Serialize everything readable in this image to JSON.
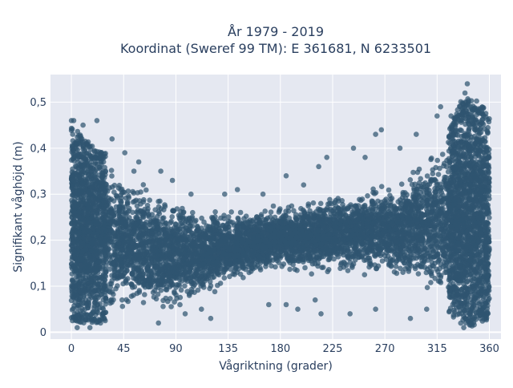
{
  "chart_data": {
    "type": "scatter",
    "title_line1": "År 1979 - 2019",
    "title_line2": "Koordinat (Sweref 99 TM): E 361681, N 6233501",
    "xlabel": "Vågriktning (grader)",
    "ylabel": "Signifikant våghöjd (m)",
    "xlim": [
      -18,
      370
    ],
    "ylim": [
      -0.015,
      0.56
    ],
    "x_ticks": [
      0,
      45,
      90,
      135,
      180,
      225,
      270,
      315,
      360
    ],
    "x_tick_labels": [
      "0",
      "45",
      "90",
      "135",
      "180",
      "225",
      "270",
      "315",
      "360"
    ],
    "y_ticks": [
      0,
      0.1,
      0.2,
      0.3,
      0.4,
      0.5
    ],
    "y_tick_labels": [
      "0",
      "0,1",
      "0,2",
      "0,3",
      "0,4",
      "0,5"
    ],
    "grid": true,
    "marker_color": "#2f5470",
    "background_color": "#e5e8f1",
    "grid_color": "#ffffff",
    "envelope": {
      "x": [
        0,
        20,
        45,
        70,
        90,
        110,
        135,
        160,
        180,
        200,
        225,
        250,
        270,
        290,
        310,
        325,
        335,
        345,
        355,
        360
      ],
      "y_min": [
        0.02,
        0.02,
        0.02,
        0.02,
        0.03,
        0.06,
        0.1,
        0.12,
        0.13,
        0.12,
        0.12,
        0.12,
        0.11,
        0.1,
        0.07,
        0.04,
        0.02,
        0.01,
        0.02,
        0.03
      ],
      "y_max": [
        0.45,
        0.4,
        0.37,
        0.33,
        0.3,
        0.28,
        0.27,
        0.27,
        0.28,
        0.29,
        0.31,
        0.32,
        0.33,
        0.36,
        0.41,
        0.45,
        0.5,
        0.52,
        0.49,
        0.47
      ]
    },
    "outliers": [
      {
        "x": 0,
        "y": 0.46
      },
      {
        "x": 2,
        "y": 0.46
      },
      {
        "x": 10,
        "y": 0.45
      },
      {
        "x": 22,
        "y": 0.46
      },
      {
        "x": 35,
        "y": 0.42
      },
      {
        "x": 46,
        "y": 0.39
      },
      {
        "x": 58,
        "y": 0.37
      },
      {
        "x": 77,
        "y": 0.35
      },
      {
        "x": 87,
        "y": 0.33
      },
      {
        "x": 103,
        "y": 0.3
      },
      {
        "x": 132,
        "y": 0.3
      },
      {
        "x": 143,
        "y": 0.31
      },
      {
        "x": 165,
        "y": 0.3
      },
      {
        "x": 185,
        "y": 0.34
      },
      {
        "x": 200,
        "y": 0.32
      },
      {
        "x": 213,
        "y": 0.36
      },
      {
        "x": 220,
        "y": 0.38
      },
      {
        "x": 243,
        "y": 0.4
      },
      {
        "x": 253,
        "y": 0.38
      },
      {
        "x": 262,
        "y": 0.43
      },
      {
        "x": 267,
        "y": 0.44
      },
      {
        "x": 283,
        "y": 0.4
      },
      {
        "x": 297,
        "y": 0.43
      },
      {
        "x": 315,
        "y": 0.47
      },
      {
        "x": 318,
        "y": 0.49
      },
      {
        "x": 327,
        "y": 0.47
      },
      {
        "x": 339,
        "y": 0.52
      },
      {
        "x": 341,
        "y": 0.54
      },
      {
        "x": 120,
        "y": 0.03
      },
      {
        "x": 170,
        "y": 0.06
      },
      {
        "x": 185,
        "y": 0.06
      },
      {
        "x": 195,
        "y": 0.05
      },
      {
        "x": 210,
        "y": 0.07
      },
      {
        "x": 215,
        "y": 0.04
      },
      {
        "x": 240,
        "y": 0.04
      },
      {
        "x": 262,
        "y": 0.05
      },
      {
        "x": 292,
        "y": 0.03
      },
      {
        "x": 306,
        "y": 0.05
      },
      {
        "x": 338,
        "y": 0.01
      },
      {
        "x": 5,
        "y": 0.01
      },
      {
        "x": 16,
        "y": 0.01
      },
      {
        "x": 75,
        "y": 0.02
      },
      {
        "x": 98,
        "y": 0.04
      },
      {
        "x": 112,
        "y": 0.05
      }
    ]
  }
}
